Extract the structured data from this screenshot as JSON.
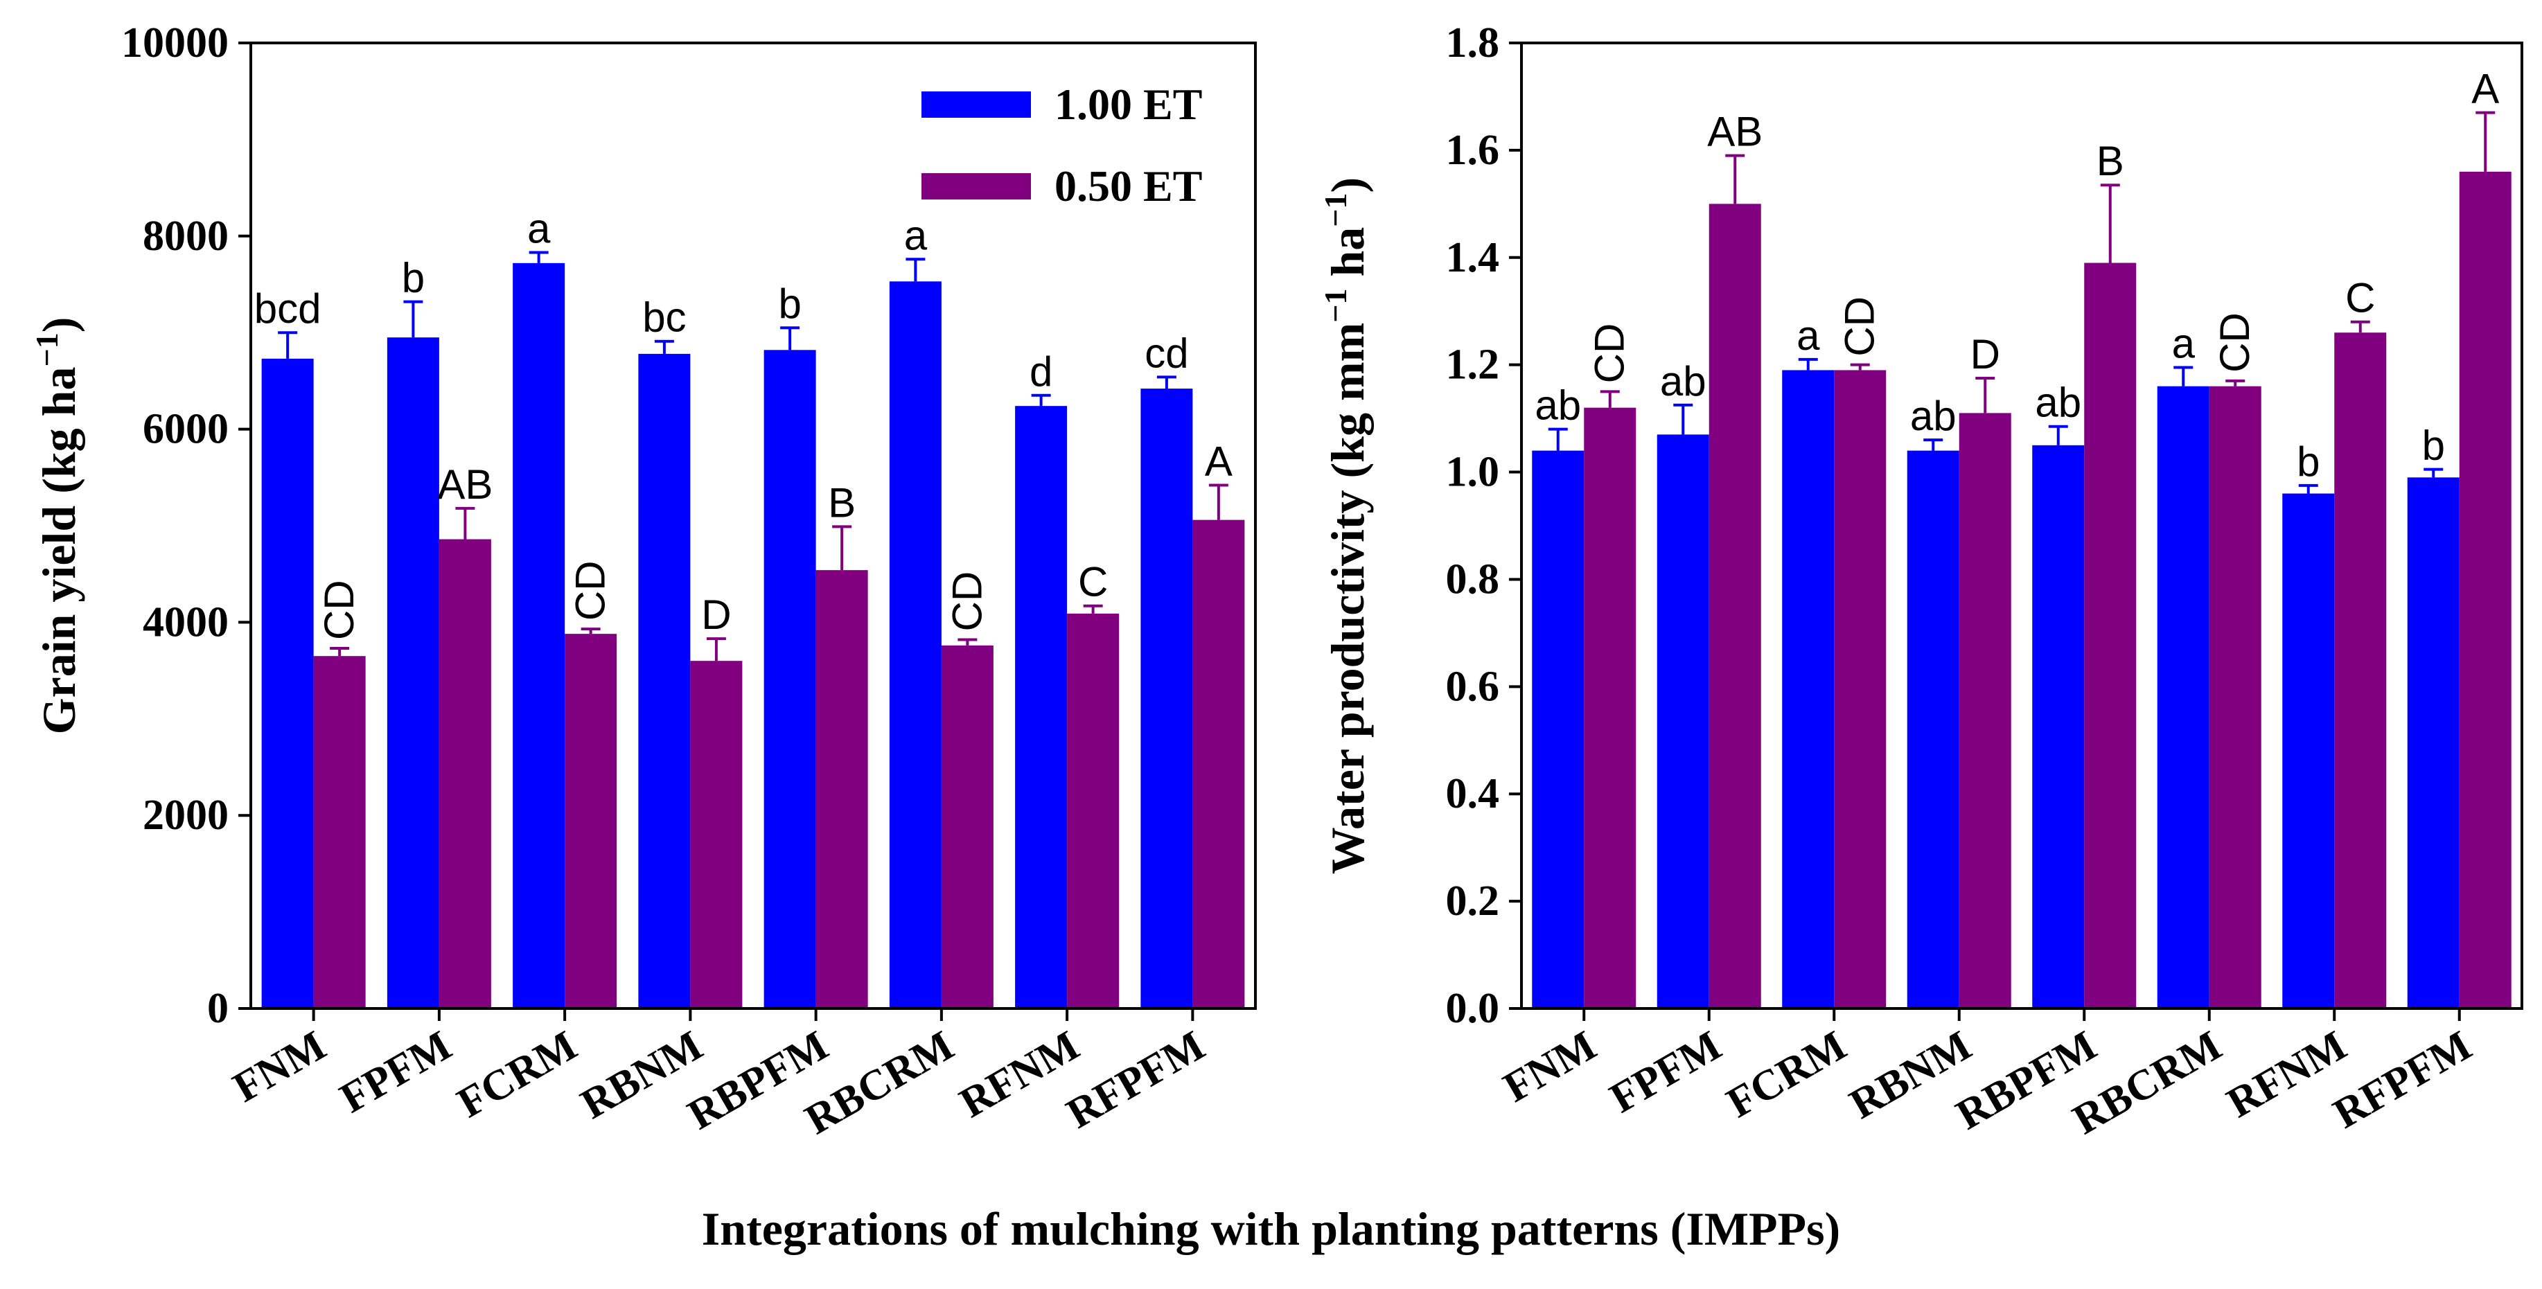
{
  "figure": {
    "xlabel": "Integrations of mulching with planting patterns (IMPPs)",
    "series_colors": {
      "1.00 ET": "#0000ff",
      "0.50 ET": "#800080"
    }
  },
  "chart_data": [
    {
      "type": "bar",
      "title": "",
      "xlabel": "",
      "ylabel": "Grain yield (kg ha",
      "ylabel_sup": "−1",
      "ylabel_end": ")",
      "ylim": [
        0,
        10000
      ],
      "yticks": [
        "0",
        "2000",
        "4000",
        "6000",
        "8000",
        "10000"
      ],
      "ytick_values": [
        0,
        2000,
        4000,
        6000,
        8000,
        10000
      ],
      "categories": [
        "FNM",
        "FPFM",
        "FCRM",
        "RBNM",
        "RBPFM",
        "RBCRM",
        "RFNM",
        "RFPFM"
      ],
      "legend": {
        "placement": "top-right",
        "entries": [
          "1.00 ET",
          "0.50 ET"
        ]
      },
      "series": [
        {
          "name": "1.00 ET",
          "color": "#0000ff",
          "values": [
            6730,
            6950,
            7720,
            6780,
            6820,
            7530,
            6240,
            6420
          ],
          "errors": [
            270,
            370,
            110,
            130,
            230,
            230,
            110,
            120
          ],
          "labels": [
            "bcd",
            "b",
            "a",
            "bc",
            "b",
            "a",
            "d",
            "cd"
          ]
        },
        {
          "name": "0.50 ET",
          "color": "#800080",
          "values": [
            3650,
            4860,
            3880,
            3600,
            4540,
            3760,
            4090,
            5060
          ],
          "errors": [
            80,
            320,
            50,
            230,
            450,
            60,
            80,
            360
          ],
          "labels": [
            "CD",
            "AB",
            "CD",
            "D",
            "B",
            "CD",
            "C",
            "A"
          ]
        }
      ]
    },
    {
      "type": "bar",
      "title": "",
      "xlabel": "",
      "ylabel": "Water productivity (kg mm",
      "ylabel_sup": "−1",
      "ylabel_mid": " ha",
      "ylabel_sup2": "−1",
      "ylabel_end": ")",
      "ylim": [
        0,
        1.8
      ],
      "yticks": [
        "0.0",
        "0.2",
        "0.4",
        "0.6",
        "0.8",
        "1.0",
        "1.2",
        "1.4",
        "1.6",
        "1.8"
      ],
      "ytick_values": [
        0,
        0.2,
        0.4,
        0.6,
        0.8,
        1.0,
        1.2,
        1.4,
        1.6,
        1.8
      ],
      "categories": [
        "FNM",
        "FPFM",
        "FCRM",
        "RBNM",
        "RBPFM",
        "RBCRM",
        "RFNM",
        "RFPFM"
      ],
      "series": [
        {
          "name": "1.00 ET",
          "color": "#0000ff",
          "values": [
            1.04,
            1.07,
            1.19,
            1.04,
            1.05,
            1.16,
            0.96,
            0.99
          ],
          "errors": [
            0.04,
            0.055,
            0.02,
            0.02,
            0.035,
            0.035,
            0.015,
            0.015
          ],
          "labels": [
            "ab",
            "ab",
            "a",
            "ab",
            "ab",
            "a",
            "b",
            "b"
          ]
        },
        {
          "name": "0.50 ET",
          "color": "#800080",
          "values": [
            1.12,
            1.5,
            1.19,
            1.11,
            1.39,
            1.16,
            1.26,
            1.56
          ],
          "errors": [
            0.03,
            0.09,
            0.01,
            0.065,
            0.145,
            0.01,
            0.02,
            0.11
          ],
          "labels": [
            "CD",
            "AB",
            "CD",
            "D",
            "B",
            "CD",
            "C",
            "A"
          ]
        }
      ]
    }
  ]
}
